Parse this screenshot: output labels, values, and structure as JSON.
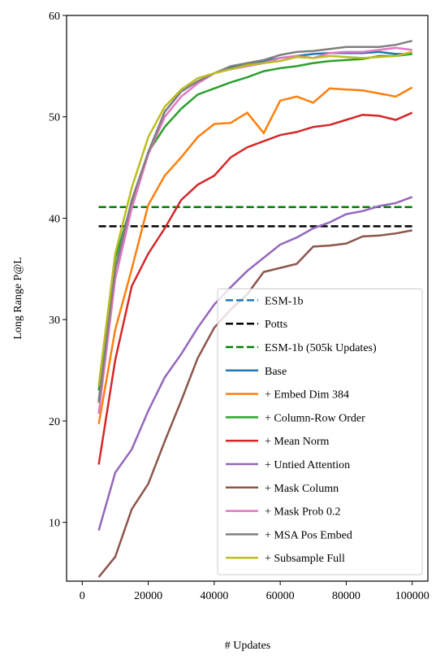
{
  "chart_data": {
    "type": "line",
    "xlabel": "# Updates",
    "ylabel": "Long Range P@L",
    "x": [
      5000,
      10000,
      15000,
      20000,
      25000,
      30000,
      35000,
      40000,
      45000,
      50000,
      55000,
      60000,
      65000,
      70000,
      75000,
      80000,
      85000,
      90000,
      95000,
      100000
    ],
    "xlim": [
      -4750,
      104750
    ],
    "ylim": [
      4.2,
      60
    ],
    "xticks": [
      0,
      20000,
      40000,
      60000,
      80000,
      100000
    ],
    "yticks": [
      10,
      20,
      30,
      40,
      50,
      60
    ],
    "legend": "lower right",
    "series": [
      {
        "name": "ESM-1b",
        "color": "#1f77b4",
        "dashed": true,
        "values": [
          41.1,
          41.1,
          41.1,
          41.1,
          41.1,
          41.1,
          41.1,
          41.1,
          41.1,
          41.1,
          41.1,
          41.1,
          41.1,
          41.1,
          41.1,
          41.1,
          41.1,
          41.1,
          41.1,
          41.1
        ]
      },
      {
        "name": "Potts",
        "color": "#000000",
        "dashed": true,
        "values": [
          39.2,
          39.2,
          39.2,
          39.2,
          39.2,
          39.2,
          39.2,
          39.2,
          39.2,
          39.2,
          39.2,
          39.2,
          39.2,
          39.2,
          39.2,
          39.2,
          39.2,
          39.2,
          39.2,
          39.2
        ]
      },
      {
        "name": "ESM-1b (505k Updates)",
        "color": "#008000",
        "dashed": true,
        "values": [
          41.1,
          41.1,
          41.1,
          41.1,
          41.1,
          41.1,
          41.1,
          41.1,
          41.1,
          41.1,
          41.1,
          41.1,
          41.1,
          41.1,
          41.1,
          41.1,
          41.1,
          41.1,
          41.1,
          41.1
        ]
      },
      {
        "name": "Base",
        "color": "#1f77b4",
        "values": [
          22,
          35,
          41,
          46.5,
          50.5,
          52.5,
          53.5,
          54.3,
          54.8,
          55.2,
          55.5,
          55.8,
          56.0,
          56.2,
          56.3,
          56.3,
          56.3,
          56.4,
          56.2,
          56.2
        ]
      },
      {
        "name": "+ Embed Dim 384",
        "color": "#ff7f0e",
        "values": [
          19.7,
          29,
          35,
          41.3,
          44.2,
          46,
          48,
          49.3,
          49.4,
          50.4,
          48.4,
          51.6,
          52.0,
          51.4,
          52.8,
          52.7,
          52.6,
          52.3,
          52,
          52.9
        ]
      },
      {
        "name": "+ Column-Row Order",
        "color": "#2ca02c",
        "values": [
          23,
          36,
          41.5,
          46.5,
          49,
          50.8,
          52.2,
          52.8,
          53.4,
          53.9,
          54.5,
          54.8,
          55,
          55.3,
          55.5,
          55.6,
          55.7,
          56,
          56,
          56.2
        ]
      },
      {
        "name": "+ Mean Norm",
        "color": "#d62728",
        "values": [
          15.7,
          26,
          33.3,
          36.5,
          39,
          41.8,
          43.3,
          44.2,
          46,
          47,
          47.6,
          48.2,
          48.5,
          49,
          49.2,
          49.7,
          50.2,
          50.1,
          49.7,
          50.4
        ]
      },
      {
        "name": "+ Untied Attention",
        "color": "#9467bd",
        "values": [
          9.2,
          14.9,
          17.2,
          21,
          24.3,
          26.6,
          29.2,
          31.5,
          33.2,
          34.8,
          36.1,
          37.4,
          38.1,
          39,
          39.6,
          40.4,
          40.7,
          41.2,
          41.5,
          42.1
        ]
      },
      {
        "name": "+ Mask Column",
        "color": "#8c564b",
        "values": [
          4.6,
          6.6,
          11.3,
          13.8,
          18,
          22,
          26.2,
          29.2,
          31,
          32.5,
          34.7,
          35.1,
          35.5,
          37.2,
          37.3,
          37.5,
          38.2,
          38.3,
          38.5,
          38.8
        ]
      },
      {
        "name": "+ Mask Prob 0.2",
        "color": "#e377c2",
        "values": [
          20.7,
          34,
          41,
          46.3,
          50,
          52,
          53.3,
          54.3,
          54.7,
          55,
          55.3,
          55.8,
          56,
          55.8,
          56.3,
          56.4,
          56.4,
          56.6,
          56.8,
          56.6
        ]
      },
      {
        "name": "+ MSA Pos Embed",
        "color": "#7f7f7f",
        "values": [
          21.8,
          35,
          41.8,
          46.5,
          50.5,
          52.5,
          53.5,
          54.3,
          55,
          55.3,
          55.6,
          56.1,
          56.4,
          56.5,
          56.7,
          56.9,
          56.9,
          56.9,
          57.1,
          57.5
        ]
      },
      {
        "name": "+ Subsample Full",
        "color": "#bcbd22",
        "values": [
          23.5,
          36.5,
          43,
          48,
          51,
          52.7,
          53.8,
          54.3,
          54.7,
          55.1,
          55.3,
          55.5,
          55.9,
          55.8,
          56,
          55.9,
          55.8,
          55.9,
          56.0,
          56.4
        ]
      }
    ]
  }
}
